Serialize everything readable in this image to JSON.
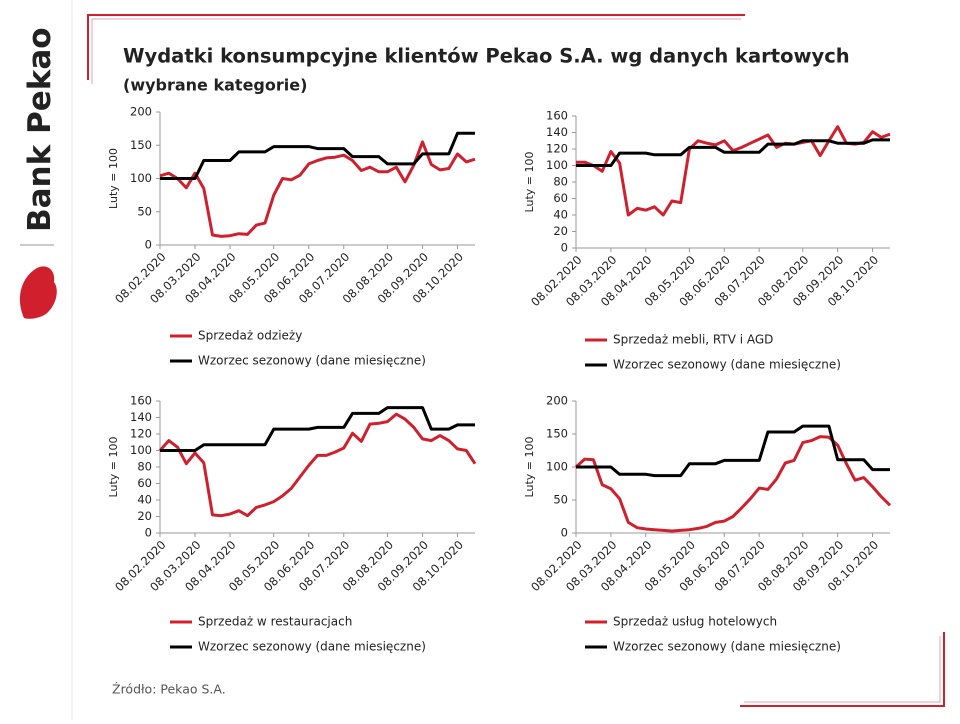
{
  "brand": "Bank Pekao",
  "title": "Wydatki konsumpcyjne klientów Pekao S.A. wg danych kartowych",
  "subtitle": "(wybrane kategorie)",
  "source": "Źródło: Pekao S.A.",
  "chart_data": [
    {
      "type": "line",
      "y_label": "Luty = 100",
      "ylim": [
        0,
        200
      ],
      "yticks": [
        0,
        50,
        100,
        150,
        200
      ],
      "categories": [
        "08.02.2020",
        null,
        null,
        null,
        "08.03.2020",
        null,
        null,
        null,
        "08.04.2020",
        null,
        null,
        null,
        null,
        "08.05.2020",
        null,
        null,
        null,
        "08.06.2020",
        null,
        null,
        null,
        "08.07.2020",
        null,
        null,
        null,
        null,
        "08.08.2020",
        null,
        null,
        null,
        "08.09.2020",
        null,
        null,
        null,
        "08.10.2020",
        null,
        null
      ],
      "series": [
        {
          "name": "Sprzedaż odzieży",
          "color": "#d0202e",
          "values": [
            104,
            108,
            100,
            86,
            108,
            85,
            15,
            13,
            14,
            17,
            16,
            30,
            33,
            75,
            100,
            98,
            105,
            122,
            127,
            131,
            132,
            135,
            127,
            112,
            117,
            110,
            110,
            117,
            95,
            120,
            155,
            121,
            113,
            115,
            137,
            125,
            129
          ]
        },
        {
          "name": "Wzorzec sezonowy (dane miesięczne)",
          "color": "#000000",
          "values": [
            100,
            100,
            100,
            100,
            100,
            127,
            127,
            127,
            127,
            140,
            140,
            140,
            140,
            148,
            148,
            148,
            148,
            148,
            145,
            145,
            145,
            145,
            133,
            133,
            133,
            133,
            122,
            122,
            122,
            122,
            137,
            137,
            137,
            137,
            168,
            168,
            168
          ]
        }
      ]
    },
    {
      "type": "line",
      "y_label": "Luty = 100",
      "ylim": [
        0,
        160
      ],
      "yticks": [
        0,
        20,
        40,
        60,
        80,
        100,
        120,
        140,
        160
      ],
      "categories": [
        "08.02.2020",
        null,
        null,
        null,
        "08.03.2020",
        null,
        null,
        null,
        "08.04.2020",
        null,
        null,
        null,
        null,
        "08.05.2020",
        null,
        null,
        null,
        "08.06.2020",
        null,
        null,
        null,
        "08.07.2020",
        null,
        null,
        null,
        null,
        "08.08.2020",
        null,
        null,
        null,
        "08.09.2020",
        null,
        null,
        null,
        "08.10.2020",
        null,
        null
      ],
      "series": [
        {
          "name": "Sprzedaż mebli, RTV i AGD",
          "color": "#d0202e",
          "values": [
            104,
            104,
            100,
            93,
            117,
            103,
            40,
            48,
            46,
            50,
            40,
            57,
            55,
            120,
            130,
            127,
            125,
            130,
            118,
            122,
            127,
            132,
            137,
            122,
            127,
            126,
            128,
            130,
            112,
            130,
            147,
            127,
            126,
            128,
            141,
            134,
            138
          ]
        },
        {
          "name": "Wzorzec sezonowy (dane miesięczne)",
          "color": "#000000",
          "values": [
            100,
            100,
            100,
            100,
            100,
            115,
            115,
            115,
            115,
            113,
            113,
            113,
            113,
            122,
            122,
            122,
            122,
            116,
            116,
            116,
            116,
            116,
            126,
            126,
            126,
            126,
            130,
            130,
            130,
            130,
            127,
            127,
            127,
            127,
            131,
            131,
            131
          ]
        }
      ]
    },
    {
      "type": "line",
      "y_label": "Luty = 100",
      "ylim": [
        0,
        160
      ],
      "yticks": [
        0,
        20,
        40,
        60,
        80,
        100,
        120,
        140,
        160
      ],
      "categories": [
        "08.02.2020",
        null,
        null,
        null,
        "08.03.2020",
        null,
        null,
        null,
        "08.04.2020",
        null,
        null,
        null,
        null,
        "08.05.2020",
        null,
        null,
        null,
        "08.06.2020",
        null,
        null,
        null,
        "08.07.2020",
        null,
        null,
        null,
        null,
        "08.08.2020",
        null,
        null,
        null,
        "08.09.2020",
        null,
        null,
        null,
        "08.10.2020",
        null,
        null
      ],
      "series": [
        {
          "name": "Sprzedaż w restauracjach",
          "color": "#d0202e",
          "values": [
            100,
            112,
            104,
            84,
            97,
            85,
            22,
            21,
            23,
            27,
            21,
            31,
            34,
            38,
            45,
            54,
            68,
            82,
            94,
            94,
            98,
            103,
            121,
            111,
            132,
            133,
            135,
            144,
            138,
            128,
            114,
            112,
            118,
            112,
            102,
            100,
            84
          ]
        },
        {
          "name": "Wzorzec sezonowy (dane miesięczne)",
          "color": "#000000",
          "values": [
            100,
            100,
            100,
            100,
            100,
            107,
            107,
            107,
            107,
            107,
            107,
            107,
            107,
            126,
            126,
            126,
            126,
            126,
            128,
            128,
            128,
            128,
            145,
            145,
            145,
            145,
            152,
            152,
            152,
            152,
            152,
            126,
            126,
            126,
            131,
            131,
            131
          ]
        }
      ]
    },
    {
      "type": "line",
      "y_label": "Luty = 100",
      "ylim": [
        0,
        200
      ],
      "yticks": [
        0,
        50,
        100,
        150,
        200
      ],
      "categories": [
        "08.02.2020",
        null,
        null,
        null,
        "08.03.2020",
        null,
        null,
        null,
        "08.04.2020",
        null,
        null,
        null,
        null,
        "08.05.2020",
        null,
        null,
        null,
        "08.06.2020",
        null,
        null,
        null,
        "08.07.2020",
        null,
        null,
        null,
        null,
        "08.08.2020",
        null,
        null,
        null,
        "08.09.2020",
        null,
        null,
        null,
        "08.10.2020",
        null,
        null
      ],
      "series": [
        {
          "name": "Sprzedaż usług hotelowych",
          "color": "#d0202e",
          "values": [
            100,
            112,
            111,
            73,
            67,
            52,
            16,
            8,
            6,
            5,
            4,
            3,
            4,
            5,
            7,
            10,
            16,
            18,
            25,
            38,
            52,
            68,
            66,
            82,
            106,
            110,
            137,
            140,
            146,
            145,
            133,
            105,
            80,
            84,
            70,
            55,
            42
          ]
        },
        {
          "name": "Wzorzec sezonowy (dane miesięczne)",
          "color": "#000000",
          "values": [
            100,
            100,
            100,
            100,
            100,
            89,
            89,
            89,
            89,
            87,
            87,
            87,
            87,
            105,
            105,
            105,
            105,
            110,
            110,
            110,
            110,
            110,
            153,
            153,
            153,
            153,
            162,
            162,
            162,
            162,
            111,
            111,
            111,
            111,
            96,
            96,
            96
          ]
        }
      ]
    }
  ]
}
